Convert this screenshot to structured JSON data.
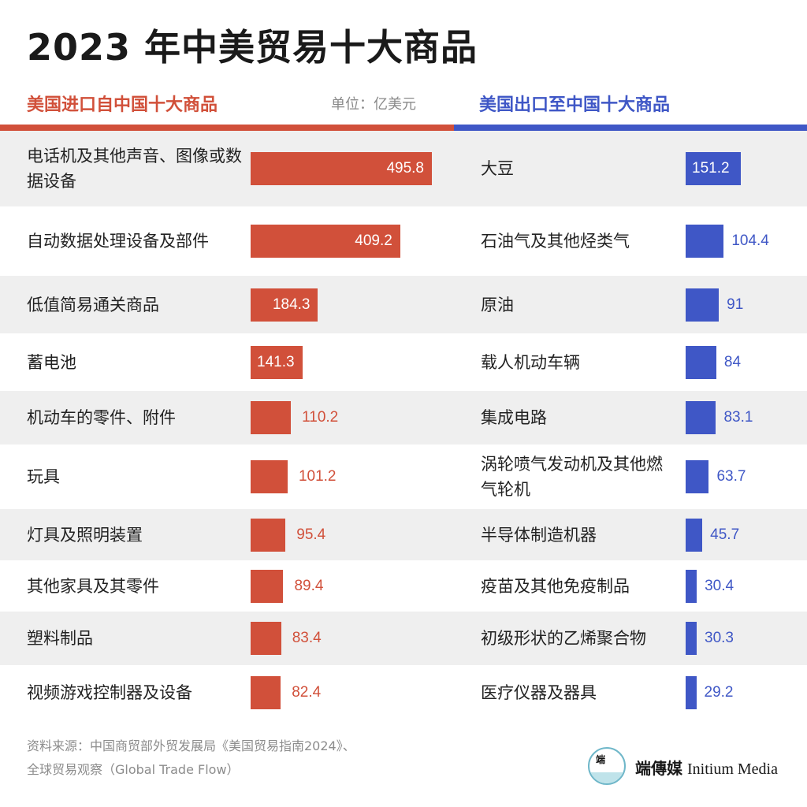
{
  "title": "2023 年中美贸易十大商品",
  "colors": {
    "import": "#d1503a",
    "export": "#3f57c6",
    "shade": "#efefef"
  },
  "header": {
    "left_title": "美国进口自中国十大商品",
    "unit": "单位：亿美元",
    "right_title": "美国出口至中国十大商品"
  },
  "chart_data": {
    "type": "bar",
    "unit": "亿美元",
    "series": [
      {
        "name": "美国进口自中国十大商品",
        "categories": [
          "电话机及其他声音、图像或数据设备",
          "自动数据处理设备及部件",
          "低值简易通关商品",
          "蓄电池",
          "机动车的零件、附件",
          "玩具",
          "灯具及照明装置",
          "其他家具及其零件",
          "塑料制品",
          "视频游戏控制器及设备"
        ],
        "values": [
          495.8,
          409.2,
          184.3,
          141.3,
          110.2,
          101.2,
          95.4,
          89.4,
          83.4,
          82.4
        ]
      },
      {
        "name": "美国出口至中国十大商品",
        "categories": [
          "大豆",
          "石油气及其他烃类气",
          "原油",
          "载人机动车辆",
          "集成电路",
          "涡轮喷气发动机及其他燃气轮机",
          "半导体制造机器",
          "疫苗及其他免疫制品",
          "初级形状的乙烯聚合物",
          "医疗仪器及器具"
        ],
        "values": [
          151.2,
          104.4,
          91,
          84,
          83.1,
          63.7,
          45.7,
          30.4,
          30.3,
          29.2
        ]
      }
    ]
  },
  "footer": {
    "source_line1": "资料来源：中国商贸部外贸发展局《美国贸易指南2024》、",
    "source_line2": "全球贸易观察（Global Trade Flow）",
    "logo_glyph": "端",
    "brand_cn": "端傳媒",
    "brand_en": "Initium Media"
  }
}
